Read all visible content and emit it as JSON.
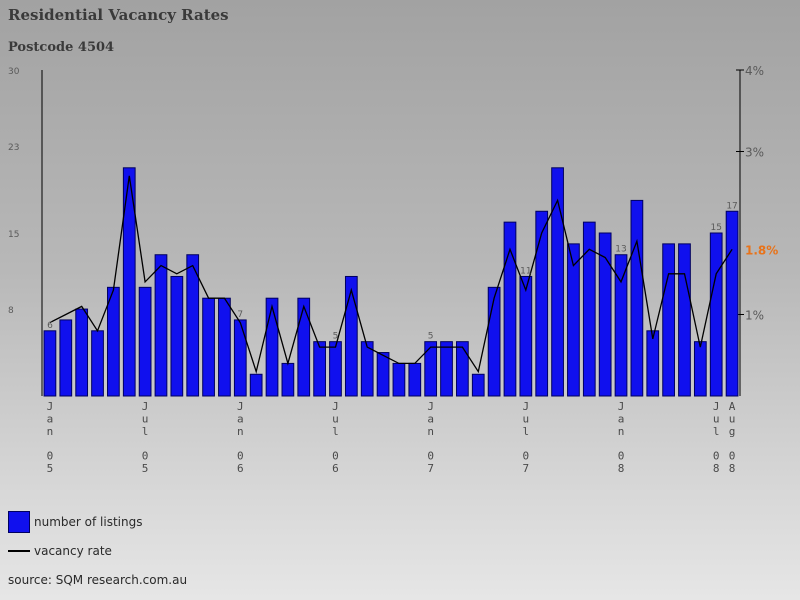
{
  "chart_data": {
    "type": "bar",
    "title": "Residential Vacancy Rates",
    "subtitle": "Postcode 4504",
    "series": [
      {
        "name": "number of listings",
        "values": [
          6,
          7,
          8,
          6,
          10,
          21,
          10,
          13,
          11,
          13,
          9,
          9,
          7,
          2,
          9,
          3,
          9,
          5,
          5,
          11,
          5,
          4,
          3,
          3,
          5,
          5,
          5,
          2,
          10,
          16,
          11,
          17,
          21,
          14,
          16,
          15,
          13,
          18,
          6,
          14,
          14,
          5,
          15,
          17
        ]
      },
      {
        "name": "vacancy rate",
        "values": [
          0.9,
          1.0,
          1.1,
          0.8,
          1.3,
          2.7,
          1.4,
          1.6,
          1.5,
          1.6,
          1.2,
          1.2,
          0.9,
          0.3,
          1.1,
          0.4,
          1.1,
          0.6,
          0.6,
          1.3,
          0.6,
          0.5,
          0.4,
          0.4,
          0.6,
          0.6,
          0.6,
          0.3,
          1.2,
          1.8,
          1.3,
          2.0,
          2.4,
          1.6,
          1.8,
          1.7,
          1.4,
          1.9,
          0.7,
          1.5,
          1.5,
          0.6,
          1.5,
          1.8
        ]
      }
    ],
    "left_axis": {
      "ticks": [
        "8",
        "15",
        "23",
        "30"
      ],
      "ylim": [
        0,
        30
      ]
    },
    "right_axis": {
      "ticks": [
        "1%",
        "3%",
        "4%"
      ],
      "ylim": [
        0,
        4
      ],
      "current_label": "1.8%"
    },
    "bar_labels": [
      {
        "index": 0,
        "text": "6"
      },
      {
        "index": 12,
        "text": "7"
      },
      {
        "index": 18,
        "text": "5"
      },
      {
        "index": 24,
        "text": "5"
      },
      {
        "index": 30,
        "text": "11"
      },
      {
        "index": 36,
        "text": "13"
      },
      {
        "index": 42,
        "text": "15"
      },
      {
        "index": 43,
        "text": "17"
      }
    ],
    "x_labels": [
      {
        "index": 0,
        "text": "Jan 05"
      },
      {
        "index": 6,
        "text": "Jul 05"
      },
      {
        "index": 12,
        "text": "Jan 06"
      },
      {
        "index": 18,
        "text": "Jul 06"
      },
      {
        "index": 24,
        "text": "Jan 07"
      },
      {
        "index": 30,
        "text": "Jul 07"
      },
      {
        "index": 36,
        "text": "Jan 08"
      },
      {
        "index": 42,
        "text": "Jul 08"
      },
      {
        "index": 43,
        "text": "Aug 08"
      }
    ],
    "colors": {
      "bar": "#1010ee",
      "bar_border": "#000060",
      "line": "#000000",
      "highlight": "#e8731a"
    }
  },
  "legend": {
    "bars_label": "number of listings",
    "line_label": "vacancy rate"
  },
  "source": "source: SQM research.com.au"
}
